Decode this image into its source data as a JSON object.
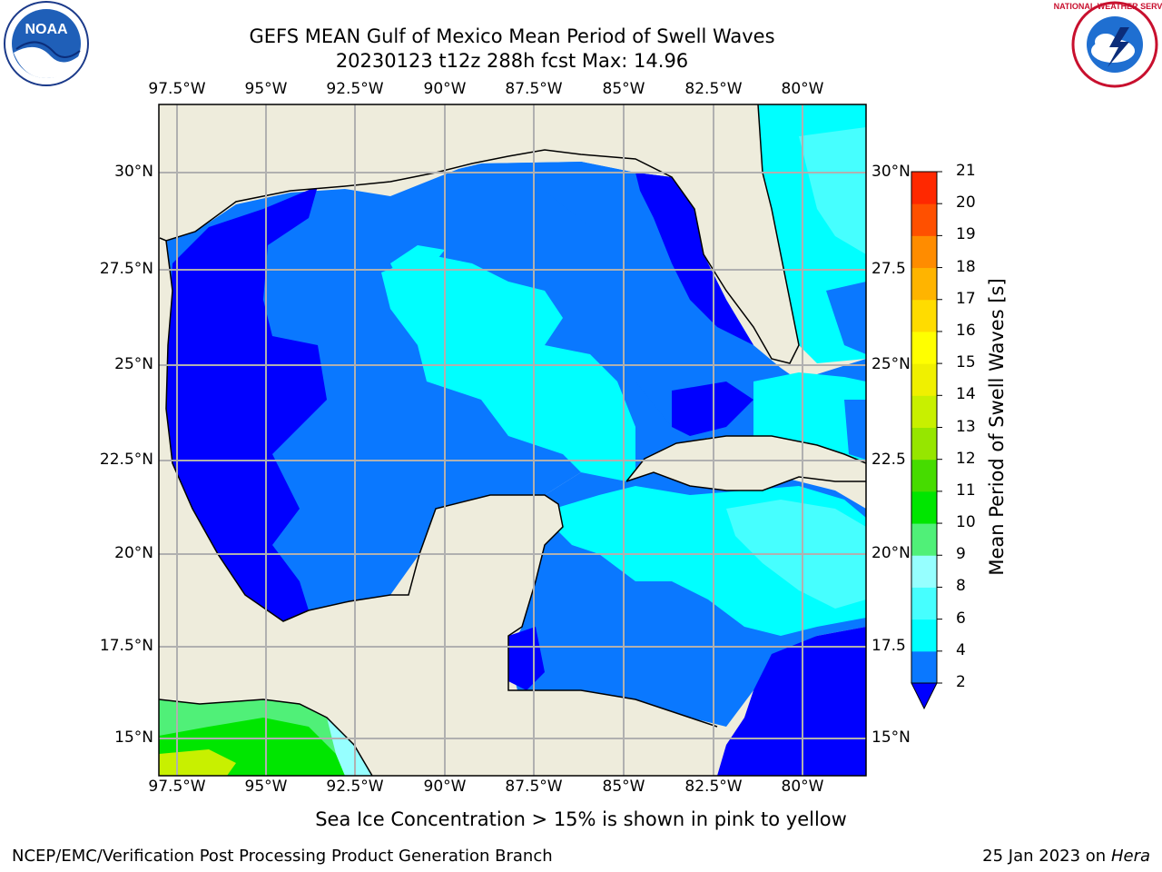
{
  "title": {
    "line1": "GEFS MEAN Gulf of Mexico Mean Period of Swell Waves",
    "line2": "20230123 t12z 288h fcst   Max: 14.96"
  },
  "logos": {
    "noaa_text": "NOAA",
    "noaa_ring_text": "NATIONAL OCEANIC AND ATMOSPHERIC ADMINISTRATION · U.S. DEPARTMENT OF COMMERCE",
    "nws_ring_text": "NATIONAL WEATHER SERVICE"
  },
  "map": {
    "lon_labels": [
      "97.5°W",
      "95°W",
      "92.5°W",
      "90°W",
      "87.5°W",
      "85°W",
      "82.5°W",
      "80°W"
    ],
    "lat_labels_left": [
      "30°N",
      "27.5°N",
      "25°N",
      "22.5°N",
      "20°N",
      "17.5°N",
      "15°N"
    ],
    "lat_labels_right": [
      "30°N",
      "27.5",
      "25°N",
      "22.5",
      "20°N",
      "17.5",
      "15°N"
    ],
    "land_color": "#eeecdc",
    "grid": true
  },
  "colorbar": {
    "label": "Mean Period of Swell Waves [s]",
    "ticks": [
      "2",
      "4",
      "6",
      "8",
      "9",
      "10",
      "11",
      "12",
      "13",
      "14",
      "15",
      "16",
      "17",
      "18",
      "19",
      "20",
      "21"
    ],
    "colors": [
      "#0000ff",
      "#0a78ff",
      "#00ffff",
      "#46ffff",
      "#96ffff",
      "#50f078",
      "#00e600",
      "#46dc00",
      "#96e600",
      "#c8f000",
      "#f0f000",
      "#ffff00",
      "#ffdc00",
      "#ffb400",
      "#ff8c00",
      "#ff5000",
      "#ff2800",
      "#ff0000"
    ]
  },
  "note": "Sea Ice Concentration > 15% is shown in pink to yellow",
  "footer": {
    "left": "NCEP/EMC/Verification Post Processing Product Generation Branch",
    "right_date": "25 Jan 2023 on ",
    "right_machine": "Hera"
  }
}
